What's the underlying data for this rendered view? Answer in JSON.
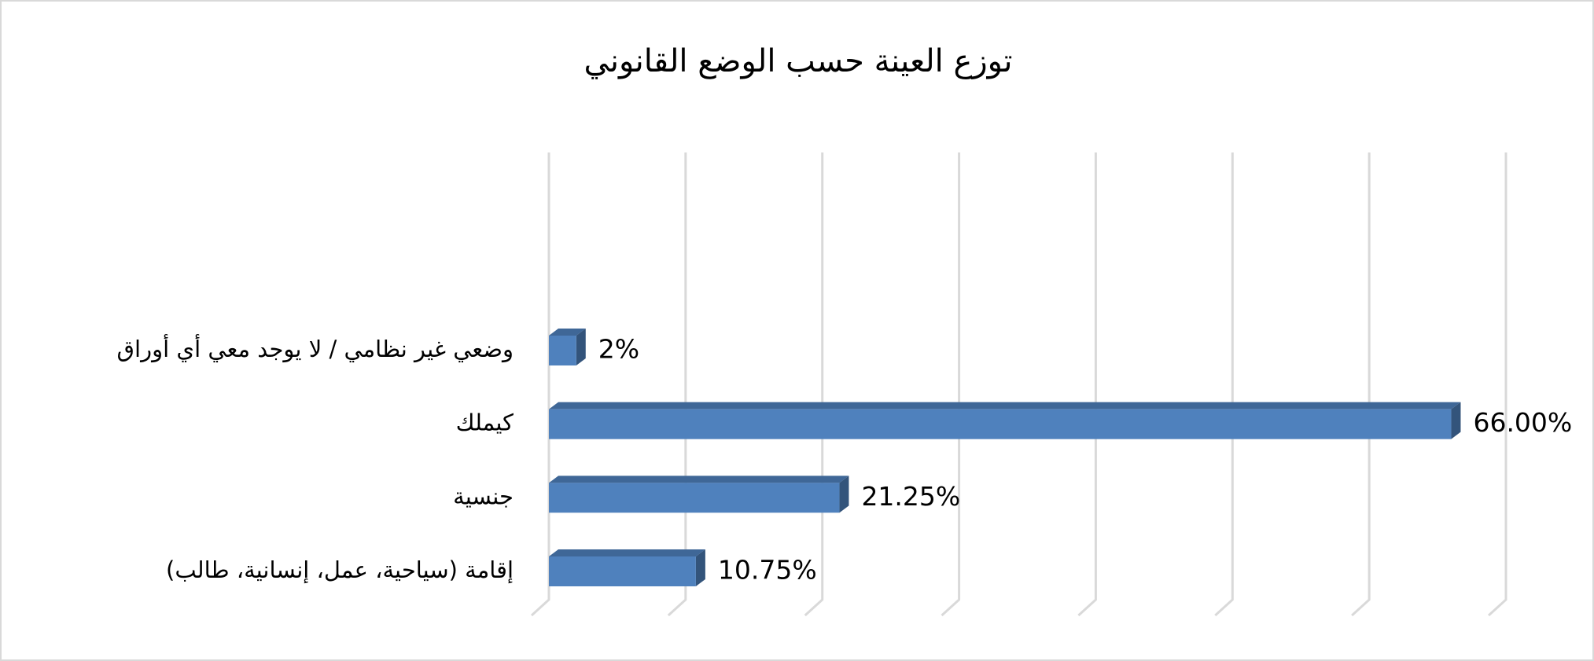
{
  "chart_data": {
    "type": "bar3d-horizontal",
    "title": "توزع العينة حسب الوضع القانوني",
    "categories": [
      "إقامة (سياحية، عمل، إنسانية، طالب)",
      "جنسية",
      "كيملك",
      "وضعي غير نظامي / لا يوجد معي أي أوراق"
    ],
    "values": [
      10.75,
      21.25,
      66,
      2
    ],
    "value_labels": [
      "10.75%",
      "21.25%",
      "66.00%",
      "2%"
    ],
    "color": "#4f81bd",
    "xlim": [
      0,
      70
    ],
    "xticks": [
      0,
      10,
      20,
      30,
      40,
      50,
      60,
      70
    ],
    "grid": true
  }
}
